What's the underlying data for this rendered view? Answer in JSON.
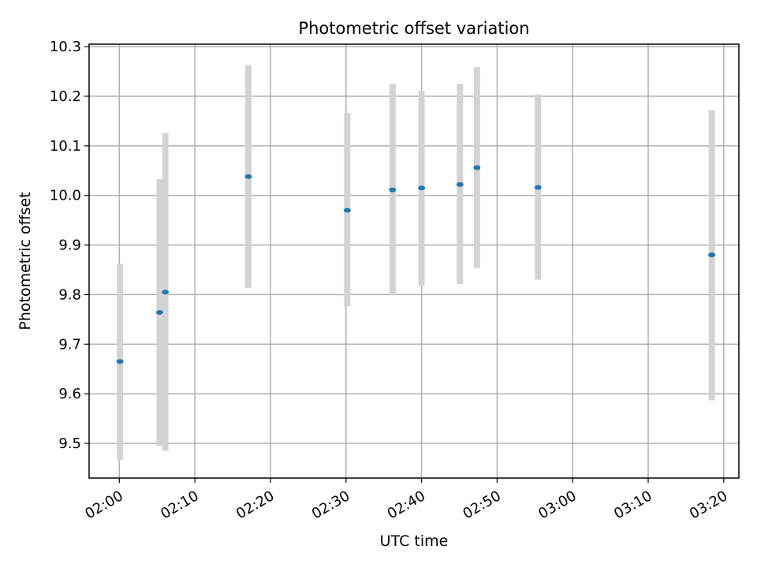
{
  "chart_data": {
    "type": "scatter",
    "title": "Photometric offset variation",
    "xlabel": "UTC time",
    "ylabel": "Photometric offset",
    "x_tick_labels": [
      "02:00",
      "02:10",
      "02:20",
      "02:30",
      "02:40",
      "02:50",
      "03:00",
      "03:10",
      "03:20"
    ],
    "y_tick_labels": [
      "9.5",
      "9.6",
      "9.7",
      "9.8",
      "9.9",
      "10.0",
      "10.1",
      "10.2",
      "10.3"
    ],
    "xlim": [
      "01:56",
      "03:22"
    ],
    "ylim": [
      9.43,
      10.305
    ],
    "grid": true,
    "points": [
      {
        "x": "02:00:05",
        "y": 9.665,
        "err_low": 9.467,
        "err_high": 9.862
      },
      {
        "x": "02:05:20",
        "y": 9.764,
        "err_low": 9.495,
        "err_high": 10.033
      },
      {
        "x": "02:06:05",
        "y": 9.805,
        "err_low": 9.485,
        "err_high": 10.126
      },
      {
        "x": "02:17:05",
        "y": 10.038,
        "err_low": 9.814,
        "err_high": 10.263
      },
      {
        "x": "02:30:10",
        "y": 9.97,
        "err_low": 9.777,
        "err_high": 10.166
      },
      {
        "x": "02:36:10",
        "y": 10.011,
        "err_low": 9.799,
        "err_high": 10.225
      },
      {
        "x": "02:40:00",
        "y": 10.015,
        "err_low": 9.818,
        "err_high": 10.211
      },
      {
        "x": "02:45:05",
        "y": 10.022,
        "err_low": 9.821,
        "err_high": 10.225
      },
      {
        "x": "02:47:20",
        "y": 10.056,
        "err_low": 9.854,
        "err_high": 10.259
      },
      {
        "x": "02:55:25",
        "y": 10.016,
        "err_low": 9.83,
        "err_high": 10.204
      },
      {
        "x": "03:18:25",
        "y": 9.88,
        "err_low": 9.587,
        "err_high": 10.172
      }
    ],
    "colors": {
      "point": "#1f77b4",
      "errorbar": "#d3d3d3",
      "grid": "#b0b0b0",
      "axis": "#000000"
    }
  }
}
